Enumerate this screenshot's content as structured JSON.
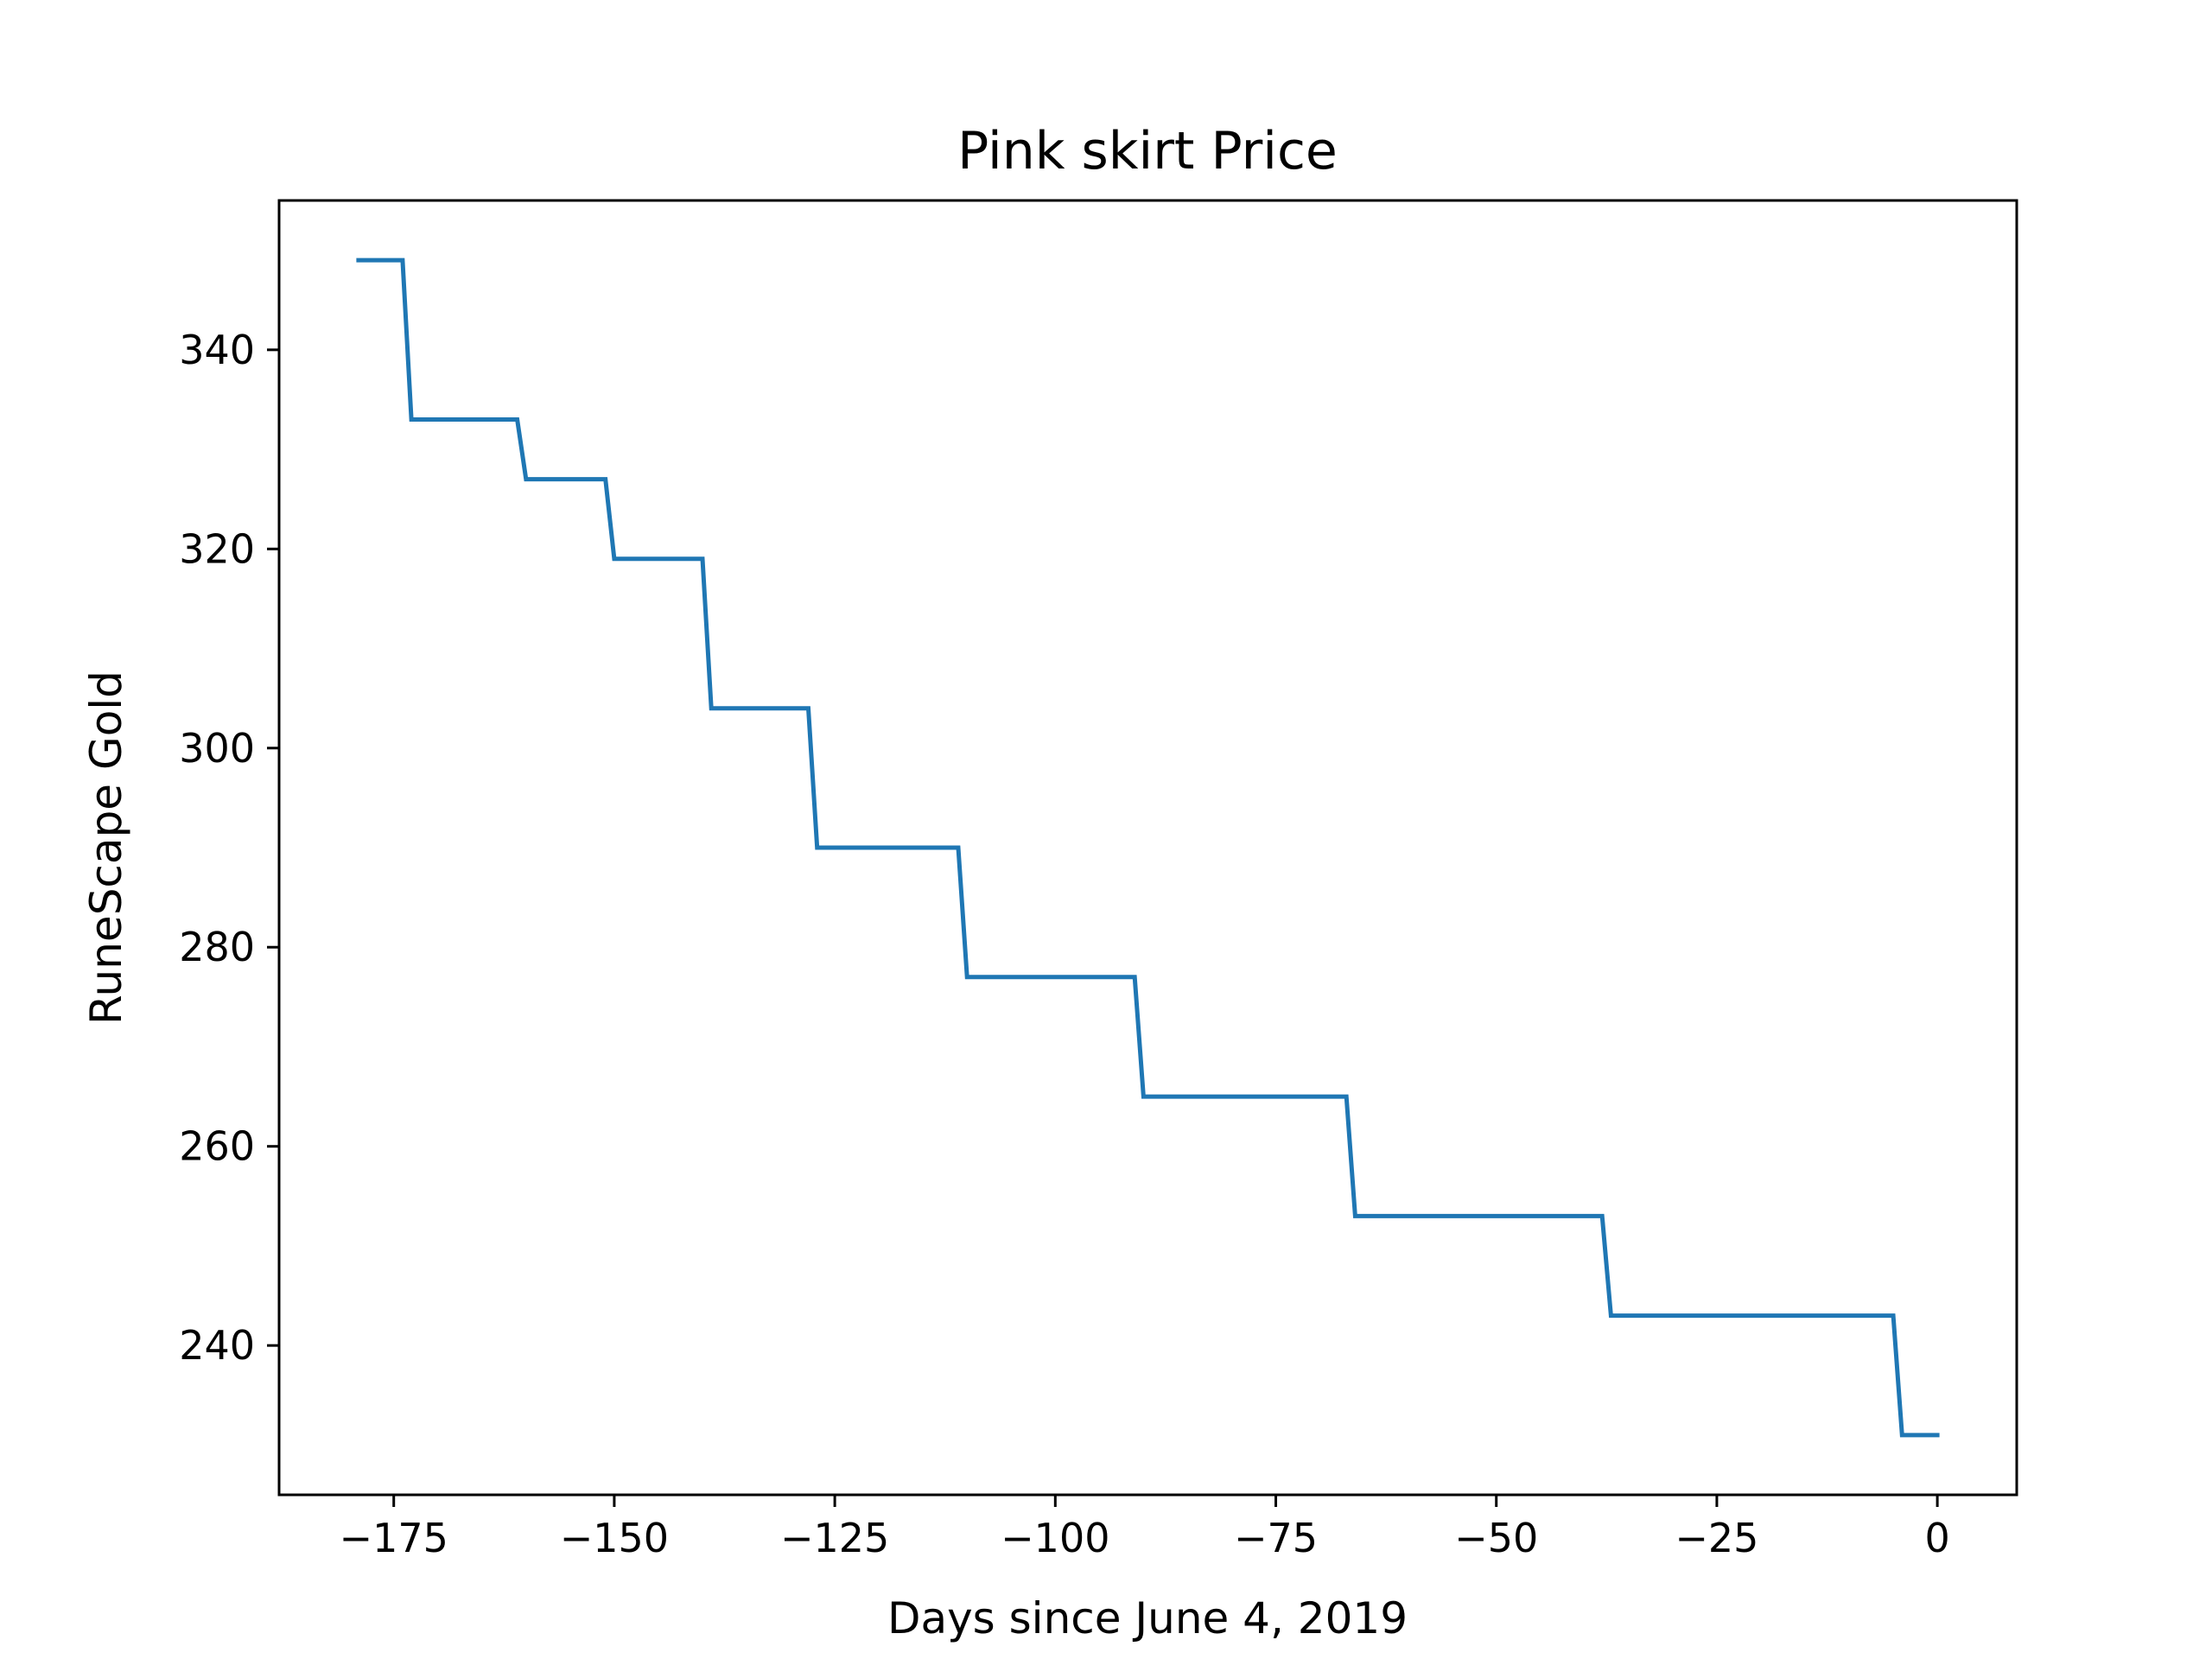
{
  "chart_data": {
    "type": "line",
    "title": "Pink skirt Price",
    "xlabel": "Days since June 4, 2019",
    "ylabel": "RuneScape Gold",
    "xlim": [
      -188,
      9
    ],
    "ylim": [
      225,
      355
    ],
    "xticks": [
      -175,
      -150,
      -125,
      -100,
      -75,
      -50,
      -25,
      0
    ],
    "xtick_labels": [
      "−175",
      "−150",
      "−125",
      "−100",
      "−75",
      "−50",
      "−25",
      "0"
    ],
    "yticks": [
      240,
      260,
      280,
      300,
      320,
      340
    ],
    "ytick_labels": [
      "240",
      "260",
      "280",
      "300",
      "320",
      "340"
    ],
    "grid": false,
    "series": [
      {
        "color": "#1f77b4",
        "points": [
          [
            -179,
            349
          ],
          [
            -174,
            349
          ],
          [
            -173,
            333
          ],
          [
            -161,
            333
          ],
          [
            -160,
            327
          ],
          [
            -151,
            327
          ],
          [
            -150,
            319
          ],
          [
            -140,
            319
          ],
          [
            -139,
            304
          ],
          [
            -128,
            304
          ],
          [
            -127,
            290
          ],
          [
            -111,
            290
          ],
          [
            -110,
            277
          ],
          [
            -91,
            277
          ],
          [
            -90,
            265
          ],
          [
            -67,
            265
          ],
          [
            -66,
            253
          ],
          [
            -38,
            253
          ],
          [
            -37,
            243
          ],
          [
            -5,
            243
          ],
          [
            -4,
            231
          ],
          [
            0,
            231
          ]
        ]
      }
    ]
  }
}
